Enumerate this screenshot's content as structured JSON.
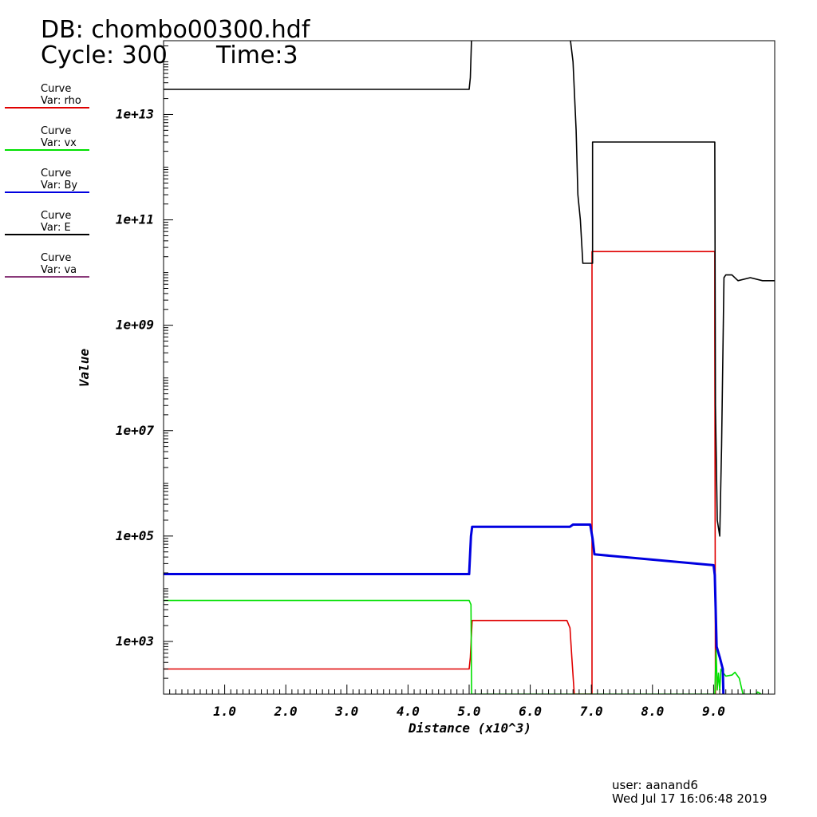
{
  "header": {
    "db": "DB: chombo00300.hdf",
    "cycle": "Cycle: 300",
    "time": "Time:3"
  },
  "legend": [
    {
      "line1": "Curve",
      "line2": "Var: rho",
      "color": "#e00000"
    },
    {
      "line1": "Curve",
      "line2": "Var: vx",
      "color": "#00e000"
    },
    {
      "line1": "Curve",
      "line2": "Var: By",
      "color": "#0000e0"
    },
    {
      "line1": "Curve",
      "line2": "Var: E",
      "color": "#000000"
    },
    {
      "line1": "Curve",
      "line2": "Var: va",
      "color": "#8a3a7a"
    }
  ],
  "footer": {
    "user": "user: aanand6",
    "date": "Wed Jul 17 16:06:48 2019"
  },
  "chart_data": {
    "type": "line",
    "xlabel": "Distance (x10^3)",
    "ylabel": "Value",
    "xlim": [
      0,
      10
    ],
    "ylim_log10": [
      2,
      14.4
    ],
    "yscale": "log",
    "grid": false,
    "x_tick_labels": [
      "1.0",
      "2.0",
      "3.0",
      "4.0",
      "5.0",
      "6.0",
      "7.0",
      "8.0",
      "9.0"
    ],
    "y_tick_labels": [
      "1e+03",
      "1e+05",
      "1e+07",
      "1e+09",
      "1e+11",
      "1e+13"
    ],
    "series": [
      {
        "name": "rho",
        "color": "#e00000",
        "x": [
          0,
          5.0,
          5.02,
          5.05,
          6.6,
          6.65,
          6.68,
          6.71,
          6.72,
          7.01,
          7.01,
          9.02,
          9.02,
          9.03
        ],
        "y": [
          300,
          300,
          500,
          2500,
          2500,
          1800,
          500,
          150,
          100,
          100,
          25000000000.0,
          25000000000.0,
          700000000.0,
          100
        ]
      },
      {
        "name": "vx",
        "color": "#00e000",
        "x": [
          0,
          5.0,
          5.03,
          5.04,
          9.02,
          9.04,
          9.06,
          9.08,
          9.1,
          9.12,
          9.15,
          9.2,
          9.3,
          9.35,
          9.42,
          9.48,
          9.7,
          9.72,
          9.78
        ],
        "y": [
          6000,
          6000,
          5000,
          100,
          100,
          700,
          120,
          250,
          120,
          300,
          260,
          220,
          230,
          260,
          200,
          100,
          100,
          110,
          100
        ]
      },
      {
        "name": "By",
        "color": "#0000e0",
        "x": [
          0,
          5.0,
          5.03,
          5.05,
          6.65,
          6.7,
          6.98,
          7.02,
          7.05,
          9.0,
          9.02,
          9.05,
          9.1,
          9.15,
          9.16
        ],
        "y": [
          19000,
          19000,
          100000,
          150000,
          150000,
          165000,
          165000,
          90000,
          45000,
          28000,
          18000,
          800,
          500,
          300,
          100
        ]
      },
      {
        "name": "E",
        "color": "#000000",
        "x": [
          0,
          5.0,
          5.02,
          5.04,
          6.65,
          6.7,
          6.75,
          6.78,
          6.82,
          6.86,
          7.02,
          7.02,
          9.02,
          9.03,
          9.06,
          9.1,
          9.13,
          9.17,
          9.2,
          9.3,
          9.4,
          9.6,
          9.8,
          10.0
        ],
        "y": [
          30000000000000.0,
          30000000000000.0,
          50000000000000.0,
          300000000000000.0,
          300000000000000.0,
          100000000000000.0,
          5000000000000.0,
          300000000000.0,
          100000000000.0,
          15000000000.0,
          15000000000.0,
          3000000000000.0,
          3000000000000.0,
          30000000.0,
          200000.0,
          100000.0,
          5000000.0,
          8000000000.0,
          9000000000.0,
          9000000000.0,
          7000000000.0,
          8000000000.0,
          7000000000.0,
          7000000000.0
        ]
      },
      {
        "name": "va",
        "color": "#8a3a7a",
        "x": [],
        "y": []
      }
    ]
  }
}
